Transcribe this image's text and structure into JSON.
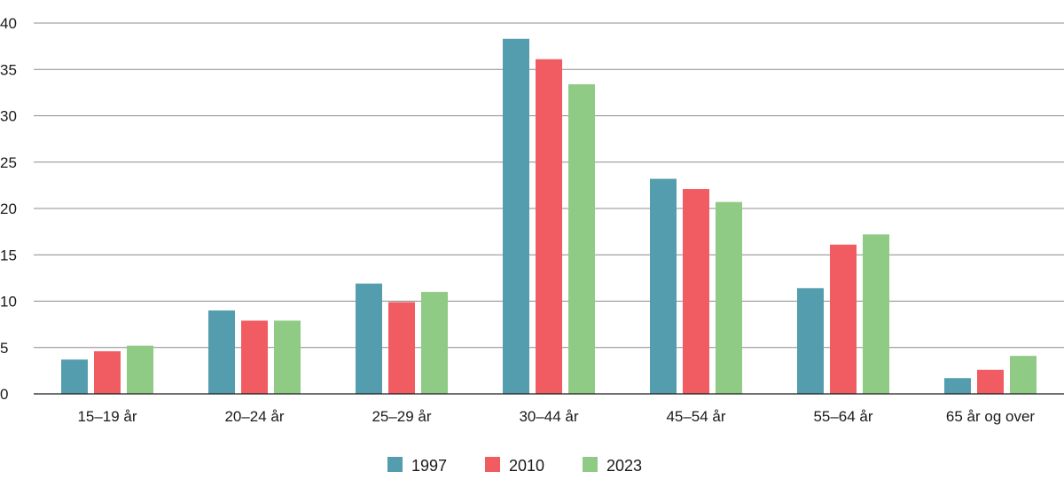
{
  "chart_data": {
    "type": "bar",
    "title": "",
    "xlabel": "",
    "ylabel": "",
    "ylim": [
      0,
      40
    ],
    "yticks": [
      0,
      5,
      10,
      15,
      20,
      25,
      30,
      35,
      40
    ],
    "grid": true,
    "legend_position": "bottom",
    "categories": [
      "15–19 år",
      "20–24 år",
      "25–29 år",
      "30–44 år",
      "45–54 år",
      "55–64 år",
      "65 år og over"
    ],
    "series": [
      {
        "name": "1997",
        "color": "#549dae",
        "values": [
          3.7,
          9.0,
          11.9,
          38.3,
          23.2,
          11.4,
          1.7
        ]
      },
      {
        "name": "2010",
        "color": "#f05c62",
        "values": [
          4.6,
          7.9,
          9.9,
          36.1,
          22.1,
          16.1,
          2.6
        ]
      },
      {
        "name": "2023",
        "color": "#8fcb84",
        "values": [
          5.2,
          7.9,
          11.0,
          33.4,
          20.7,
          17.2,
          4.1
        ]
      }
    ]
  }
}
